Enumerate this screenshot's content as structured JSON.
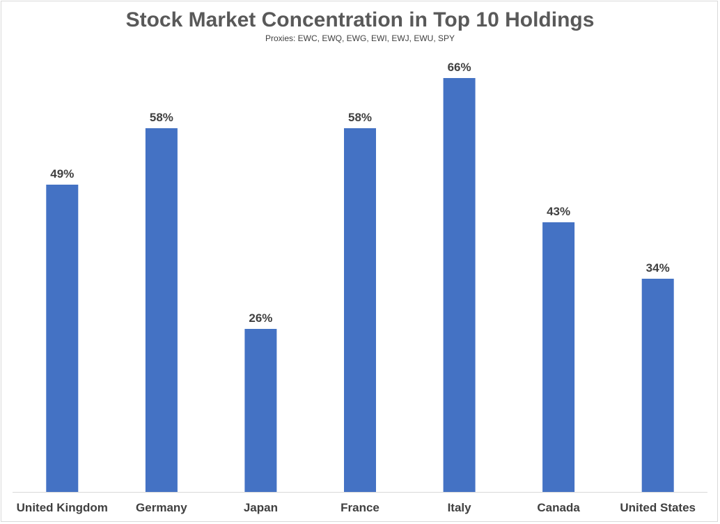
{
  "chart_data": {
    "type": "bar",
    "title": "Stock Market Concentration in Top 10 Holdings",
    "subtitle": "Proxies: EWC, EWQ, EWG, EWI, EWJ, EWU, SPY",
    "categories": [
      "United Kingdom",
      "Germany",
      "Japan",
      "France",
      "Italy",
      "Canada",
      "United States"
    ],
    "values": [
      49,
      58,
      26,
      58,
      66,
      43,
      34
    ],
    "data_labels": [
      "49%",
      "58%",
      "26%",
      "58%",
      "66%",
      "43%",
      "34%"
    ],
    "unit": "%",
    "ylim": [
      0,
      70
    ],
    "grid": false,
    "legend": "none",
    "bar_color": "#4472c4"
  }
}
